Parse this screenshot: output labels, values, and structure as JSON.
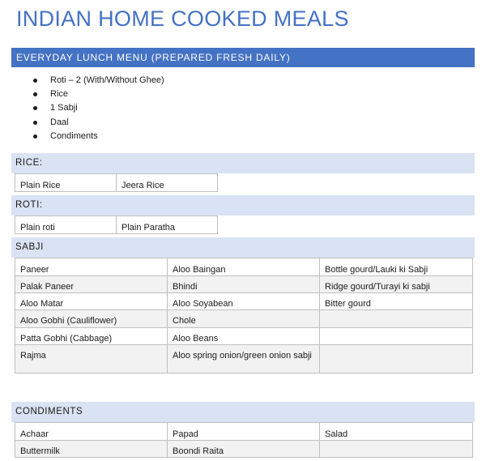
{
  "title": "INDIAN HOME COOKED MEALS",
  "lunch": {
    "heading": "EVERYDAY LUNCH MENU (PREPARED FRESH DAILY)",
    "items": [
      "Roti – 2 (With/Without Ghee)",
      "Rice",
      "1 Sabji",
      "Daal",
      "Condiments"
    ]
  },
  "rice": {
    "heading": "RICE:",
    "items": [
      "Plain Rice",
      "Jeera Rice"
    ]
  },
  "roti": {
    "heading": "ROTI:",
    "items": [
      "Plain roti",
      "Plain Paratha"
    ]
  },
  "sabji": {
    "heading": "SABJI",
    "rows": [
      [
        "Paneer",
        "Aloo Baingan",
        "Bottle gourd/Lauki ki Sabji"
      ],
      [
        "Palak Paneer",
        "Bhindi",
        "Ridge gourd/Turayi ki sabji"
      ],
      [
        "Aloo Matar",
        "Aloo Soyabean",
        "Bitter gourd"
      ],
      [
        "Aloo Gobhi (Cauliflower)",
        "Chole",
        ""
      ],
      [
        "Patta Gobhi (Cabbage)",
        "Aloo Beans",
        ""
      ],
      [
        "Rajma",
        "Aloo spring onion/green onion sabji",
        ""
      ]
    ]
  },
  "condiments": {
    "heading": "CONDIMENTS",
    "rows": [
      [
        "Achaar",
        "Papad",
        "Salad"
      ],
      [
        "Buttermilk",
        "Boondi Raita",
        ""
      ]
    ]
  },
  "colors": {
    "accent": "#4472c4",
    "band": "#dae3f3",
    "row_shade": "#f2f2f2",
    "border": "#bfbfbf"
  }
}
